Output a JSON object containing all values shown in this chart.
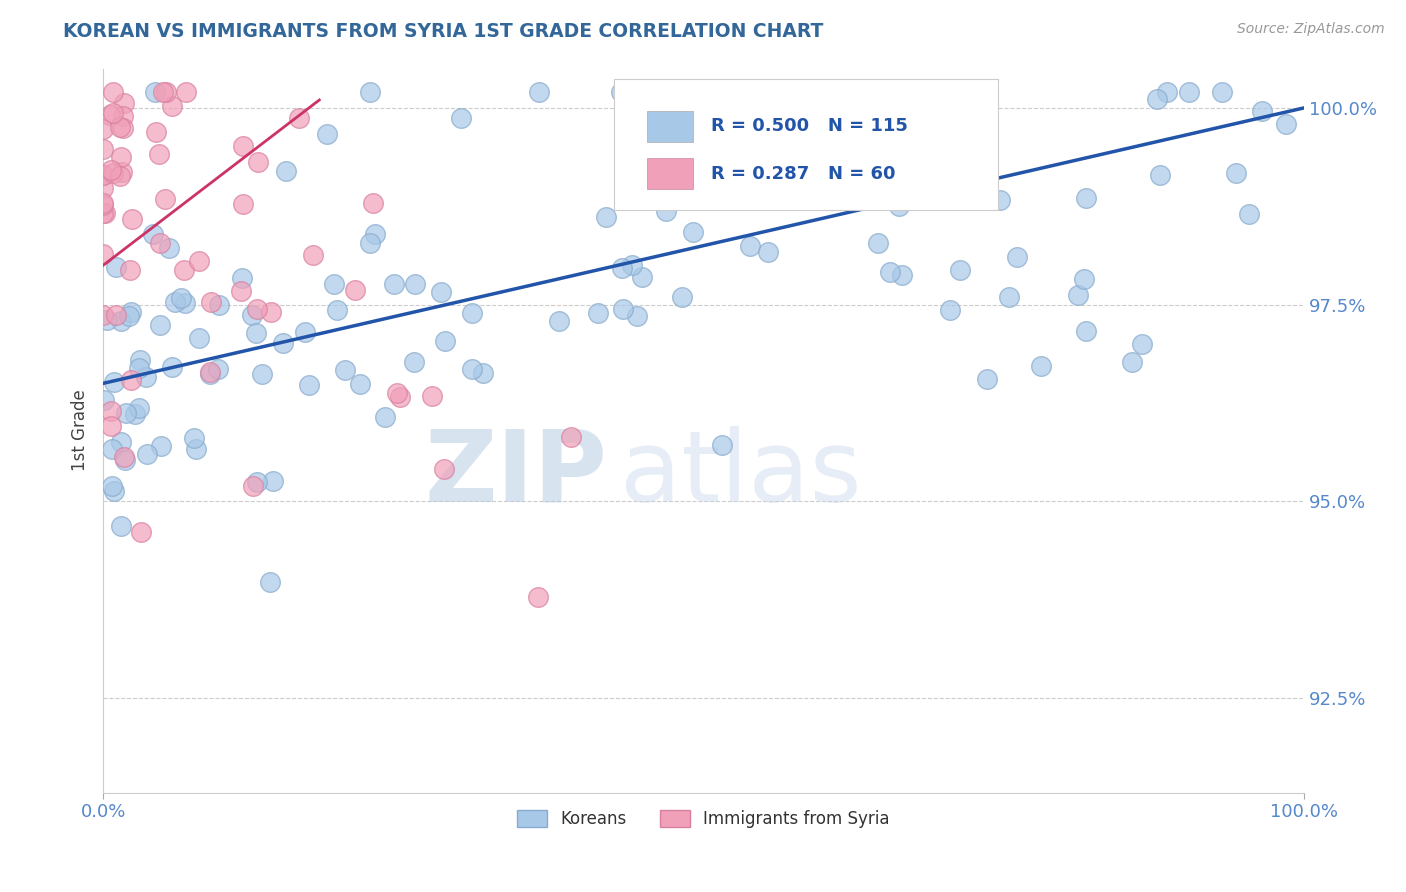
{
  "title": "KOREAN VS IMMIGRANTS FROM SYRIA 1ST GRADE CORRELATION CHART",
  "source_text": "Source: ZipAtlas.com",
  "ylabel": "1st Grade",
  "xlim": [
    0.0,
    1.0
  ],
  "ylim": [
    0.913,
    1.005
  ],
  "yticks": [
    0.925,
    0.95,
    0.975,
    1.0
  ],
  "ytick_labels": [
    "92.5%",
    "95.0%",
    "97.5%",
    "100.0%"
  ],
  "xticks": [
    0.0,
    1.0
  ],
  "xtick_labels": [
    "0.0%",
    "100.0%"
  ],
  "blue_R": 0.5,
  "blue_N": 115,
  "pink_R": 0.287,
  "pink_N": 60,
  "blue_color": "#a8c8e8",
  "pink_color": "#f0a0b8",
  "blue_edge_color": "#88aacc",
  "pink_edge_color": "#d880a0",
  "blue_line_color": "#2255aa",
  "pink_line_color": "#cc3366",
  "title_color": "#336699",
  "background_color": "#ffffff",
  "watermark_zip": "ZIP",
  "watermark_atlas": "atlas",
  "watermark_color_zip": "#b8cce4",
  "watermark_color_atlas": "#c8d8ec",
  "grid_color": "#cccccc",
  "tick_color": "#5588cc",
  "blue_trend_x0": 0.0,
  "blue_trend_y0": 0.965,
  "blue_trend_x1": 1.0,
  "blue_trend_y1": 1.0,
  "pink_trend_x0": 0.0,
  "pink_trend_y0": 0.98,
  "pink_trend_x1": 0.18,
  "pink_trend_y1": 1.001
}
